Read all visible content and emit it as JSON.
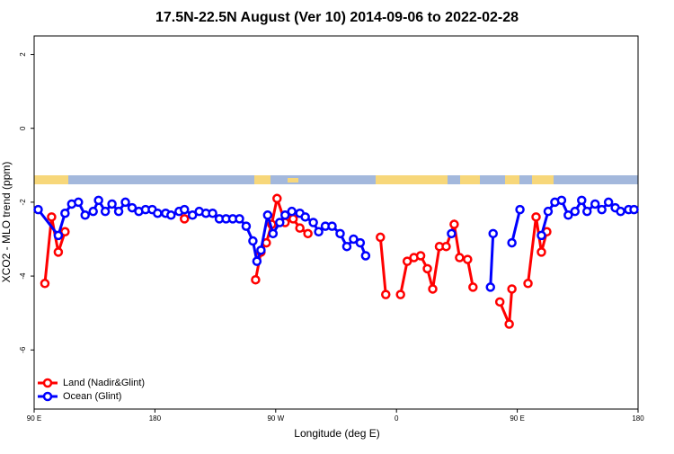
{
  "chart_data": {
    "type": "line",
    "title": "17.5N-22.5N August (Ver 10)   2014-09-06 to 2022-02-28",
    "x_label": "Longitude (deg E)",
    "y_label": "XCO2 - MLO trend (ppm)",
    "xlim": [
      90,
      540
    ],
    "ylim": [
      -7.6,
      2.5
    ],
    "xticks": [
      {
        "value": 90,
        "label": "90 E"
      },
      {
        "value": 180,
        "label": "180"
      },
      {
        "value": 270,
        "label": "90 W"
      },
      {
        "value": 360,
        "label": "0"
      },
      {
        "value": 450,
        "label": "90 E"
      },
      {
        "value": 540,
        "label": "180"
      }
    ],
    "yticks": [
      2,
      0,
      -2,
      -4,
      -6
    ],
    "legend": "bottomleft",
    "series": [
      {
        "name": "Land (Nadir&Glint)",
        "color": "#ff0000",
        "x": [
          98,
          103,
          108,
          113,
          null,
          202,
          null,
          255,
          259,
          263,
          267,
          271,
          277,
          283,
          288,
          294,
          null,
          348,
          352,
          null,
          363,
          368,
          373,
          378,
          383,
          387,
          392,
          397,
          403,
          407,
          413,
          417,
          null,
          437,
          444,
          446,
          null,
          458,
          464,
          468,
          472
        ],
        "values": [
          -4.2,
          -2.4,
          -3.35,
          -2.8,
          null,
          -2.45,
          null,
          -4.1,
          -3.35,
          -3.1,
          -2.6,
          -1.9,
          -2.55,
          -2.45,
          -2.7,
          -2.85,
          null,
          -2.95,
          -4.5,
          null,
          -4.5,
          -3.6,
          -3.5,
          -3.45,
          -3.8,
          -4.35,
          -3.2,
          -3.2,
          -2.6,
          -3.5,
          -3.55,
          -4.3,
          null,
          -4.7,
          -5.3,
          -4.35,
          null,
          -4.2,
          -2.4,
          -3.35,
          -2.8
        ]
      },
      {
        "name": "Ocean (Glint)",
        "color": "#0000ff",
        "x": [
          93,
          108,
          113,
          118,
          123,
          128,
          134,
          138,
          143,
          148,
          153,
          158,
          163,
          168,
          173,
          178,
          182,
          188,
          192,
          198,
          202,
          208,
          213,
          218,
          223,
          228,
          233,
          238,
          243,
          248,
          253,
          256,
          259,
          264,
          268,
          273,
          277,
          282,
          288,
          292,
          298,
          302,
          307,
          312,
          318,
          323,
          328,
          333,
          337,
          null,
          401,
          null,
          430,
          432,
          null,
          446,
          452,
          null,
          468,
          473,
          478,
          483,
          488,
          493,
          498,
          502,
          508,
          513,
          518,
          523,
          527,
          533,
          537
        ],
        "values": [
          -2.2,
          -2.9,
          -2.3,
          -2.05,
          -2.0,
          -2.35,
          -2.25,
          -1.95,
          -2.25,
          -2.05,
          -2.25,
          -2.0,
          -2.15,
          -2.25,
          -2.2,
          -2.2,
          -2.3,
          -2.3,
          -2.35,
          -2.25,
          -2.2,
          -2.35,
          -2.25,
          -2.3,
          -2.3,
          -2.45,
          -2.45,
          -2.45,
          -2.45,
          -2.65,
          -3.05,
          -3.6,
          -3.3,
          -2.35,
          -2.85,
          -2.55,
          -2.35,
          -2.25,
          -2.3,
          -2.4,
          -2.55,
          -2.8,
          -2.65,
          -2.65,
          -2.85,
          -3.2,
          -3.0,
          -3.1,
          -3.45,
          null,
          -2.85,
          null,
          -4.3,
          -2.85,
          null,
          -3.1,
          -2.2,
          null,
          -2.9,
          -2.25,
          -2.0,
          -1.95,
          -2.35,
          -2.25,
          -1.95,
          -2.25,
          -2.05,
          -2.2,
          -2.0,
          -2.15,
          -2.25,
          -2.2,
          -2.2
        ]
      }
    ]
  }
}
